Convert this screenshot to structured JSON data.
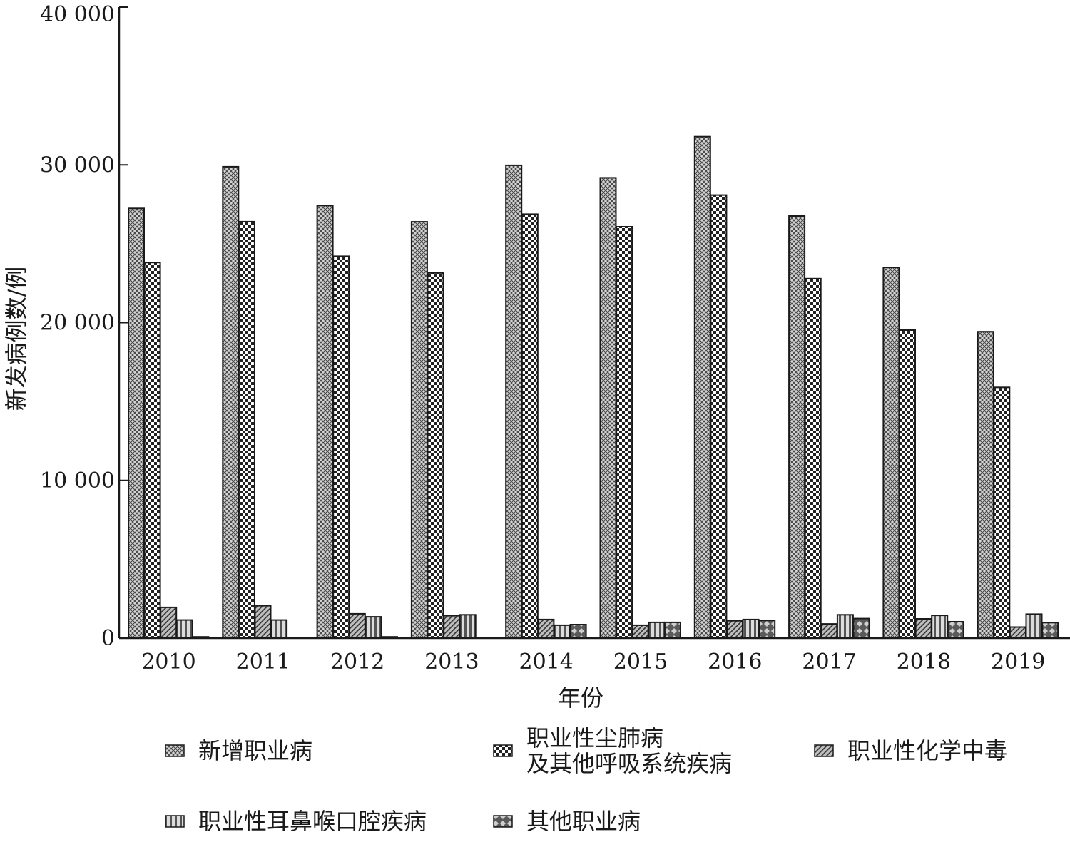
{
  "chart_data": {
    "type": "bar",
    "xlabel": "年份",
    "ylabel": "新发病例数/例",
    "ylim": [
      0,
      40000
    ],
    "yticks": [
      0,
      10000,
      20000,
      30000,
      40000
    ],
    "ytick_labels": [
      "0",
      "10 000",
      "20 000",
      "30 000",
      "40 000"
    ],
    "categories": [
      "2010",
      "2011",
      "2012",
      "2013",
      "2014",
      "2015",
      "2016",
      "2017",
      "2018",
      "2019"
    ],
    "series": [
      {
        "name": "新增职业病",
        "legend_lines": [
          "新增职业病"
        ],
        "values": [
          27240,
          29879,
          27420,
          26393,
          29972,
          29180,
          31789,
          26756,
          23497,
          19428
        ]
      },
      {
        "name": "职业性尘肺病及其他呼吸系统疾病",
        "legend_lines": [
          "职业性尘肺病",
          "及其他呼吸系统疾病"
        ],
        "values": [
          23812,
          26401,
          24206,
          23152,
          26873,
          26081,
          28088,
          22790,
          19524,
          15898
        ]
      },
      {
        "name": "职业性化学中毒",
        "legend_lines": [
          "职业性化学中毒"
        ],
        "values": [
          1950,
          2050,
          1540,
          1420,
          1180,
          820,
          1100,
          900,
          1220,
          700
        ]
      },
      {
        "name": "职业性耳鼻喉口腔疾病",
        "legend_lines": [
          "职业性耳鼻喉口腔疾病"
        ],
        "values": [
          1150,
          1150,
          1350,
          1480,
          820,
          1000,
          1180,
          1480,
          1440,
          1520
        ]
      },
      {
        "name": "其他职业病",
        "legend_lines": [
          "其他职业病"
        ],
        "values": [
          80,
          0,
          80,
          0,
          860,
          1000,
          1120,
          1240,
          1040,
          980
        ]
      }
    ],
    "legend_position": "bottom",
    "grid": false,
    "colors": {
      "bar_stroke": "#1a1a1a",
      "axis": "#1a1a1a",
      "fill_light": "#c8c8c8",
      "fill_dark": "#555555"
    },
    "patterns": [
      "fine-crosshatch",
      "checkerboard",
      "diagonal-hatch",
      "vertical-stripes",
      "diamond-lattice"
    ]
  }
}
